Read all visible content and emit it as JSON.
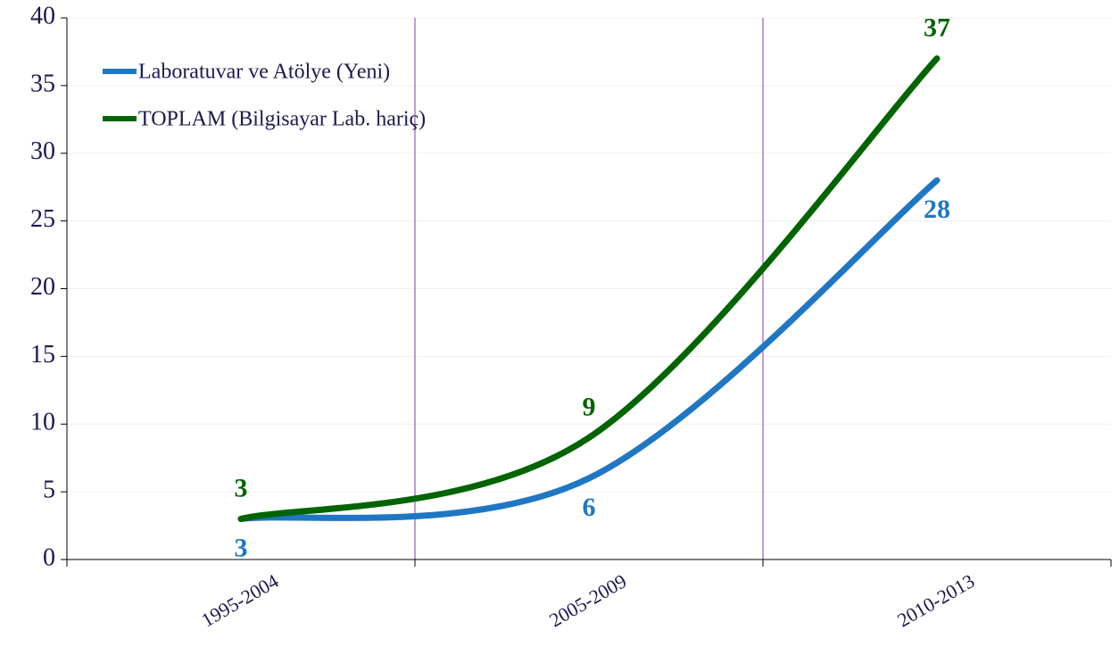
{
  "chart_data": {
    "type": "line",
    "categories": [
      "1995-2004",
      "2005-2009",
      "2010-2013"
    ],
    "series": [
      {
        "name": "Laboratuvar ve Atölye (Yeni)",
        "color": "#1f77c4",
        "values": [
          3,
          6,
          28
        ]
      },
      {
        "name": "TOPLAM (Bilgisayar Lab. hariç)",
        "color": "#006400",
        "values": [
          3,
          9,
          37
        ]
      }
    ],
    "ylim": [
      0,
      40
    ],
    "yticks": [
      0,
      5,
      10,
      15,
      20,
      25,
      30,
      35,
      40
    ],
    "grid": true,
    "smooth": true,
    "legend": "top-left"
  }
}
